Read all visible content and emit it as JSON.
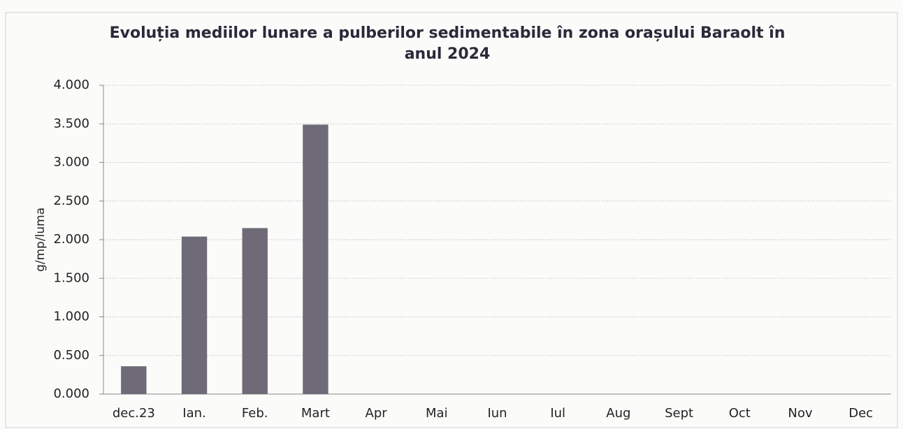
{
  "chart_data": {
    "type": "bar",
    "title": "Evoluția mediilor lunare a pulberilor sedimentabile în zona orașului Baraolt în anul 2024",
    "y_label": "g/mp/luma",
    "categories": [
      "dec.23",
      "Ian.",
      "Feb.",
      "Mart",
      "Apr",
      "Mai",
      "Iun",
      "Iul",
      "Aug",
      "Sept",
      "Oct",
      "Nov",
      "Dec"
    ],
    "values": [
      0.36,
      2.04,
      2.15,
      3.49,
      null,
      null,
      null,
      null,
      null,
      null,
      null,
      null,
      null
    ],
    "color": "#6e6a78",
    "ylim": [
      0,
      4
    ],
    "yticks": [
      {
        "value": 0,
        "label": "0.000"
      },
      {
        "value": 0.5,
        "label": "0.500"
      },
      {
        "value": 1,
        "label": "1.000"
      },
      {
        "value": 1.5,
        "label": "1.500"
      },
      {
        "value": 2,
        "label": "2.000"
      },
      {
        "value": 2.5,
        "label": "2.500"
      },
      {
        "value": 3,
        "label": "3.000"
      },
      {
        "value": 3.5,
        "label": "3.500"
      },
      {
        "value": 4,
        "label": "4.000"
      }
    ],
    "grid": true
  }
}
